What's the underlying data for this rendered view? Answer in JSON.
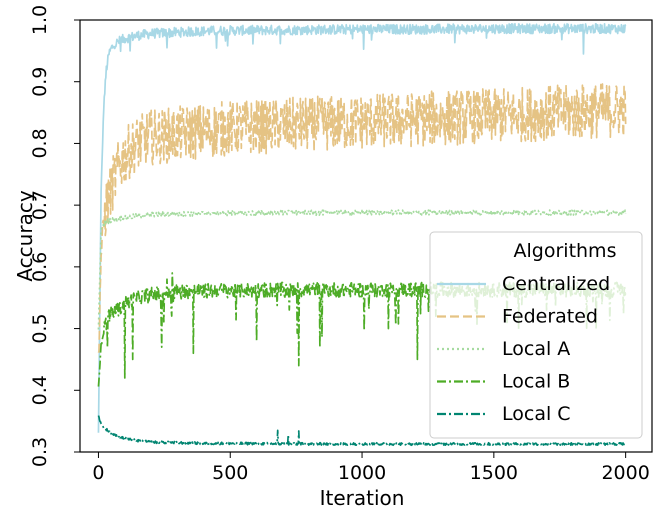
{
  "chart_data": {
    "type": "line",
    "title": "",
    "xlabel": "Iteration",
    "ylabel": "Accuracy",
    "xlim": [
      -70,
      2100
    ],
    "ylim": [
      0.3,
      1.0
    ],
    "xticks": [
      0,
      500,
      1000,
      1500,
      2000
    ],
    "yticks": [
      0.3,
      0.4,
      0.5,
      0.6,
      0.7,
      0.8,
      0.9,
      1.0
    ],
    "xtick_labels": [
      "0",
      "500",
      "1000",
      "1500",
      "2000"
    ],
    "ytick_labels": [
      "0.3",
      "0.4",
      "0.5",
      "0.6",
      "0.7",
      "0.8",
      "0.9",
      "1.0"
    ],
    "legend": {
      "title": "Algorithms",
      "position": "center-right"
    },
    "series": [
      {
        "name": "Centralized",
        "color": "#a8d8e6",
        "style": "solid",
        "x": [
          0,
          10,
          20,
          30,
          40,
          50,
          75,
          100,
          150,
          200,
          300,
          400,
          500,
          750,
          1000,
          1250,
          1500,
          1750,
          2000
        ],
        "values": [
          0.33,
          0.72,
          0.86,
          0.92,
          0.945,
          0.955,
          0.965,
          0.97,
          0.975,
          0.978,
          0.98,
          0.982,
          0.983,
          0.984,
          0.985,
          0.985,
          0.986,
          0.986,
          0.986
        ],
        "noise": 0.008,
        "spikes": [
          [
            1840,
            0.945
          ],
          [
            120,
            0.95
          ],
          [
            260,
            0.955
          ]
        ]
      },
      {
        "name": "Federated",
        "color": "#e5c384",
        "style": "dashed",
        "x": [
          0,
          10,
          20,
          30,
          50,
          75,
          100,
          150,
          200,
          300,
          400,
          500,
          750,
          1000,
          1250,
          1500,
          1750,
          2000
        ],
        "values": [
          0.45,
          0.62,
          0.67,
          0.7,
          0.73,
          0.76,
          0.78,
          0.8,
          0.81,
          0.815,
          0.82,
          0.825,
          0.83,
          0.835,
          0.84,
          0.845,
          0.85,
          0.855
        ],
        "noise": 0.045
      },
      {
        "name": "Local A",
        "color": "#a6dba0",
        "style": "dotted",
        "x": [
          0,
          10,
          20,
          40,
          100,
          200,
          500,
          1000,
          1500,
          2000
        ],
        "values": [
          0.5,
          0.66,
          0.67,
          0.675,
          0.68,
          0.685,
          0.687,
          0.688,
          0.688,
          0.688
        ],
        "noise": 0.004
      },
      {
        "name": "Local B",
        "color": "#4dac26",
        "style": "dashdot",
        "x": [
          0,
          10,
          20,
          40,
          70,
          100,
          150,
          200,
          300,
          500,
          750,
          1000,
          1250,
          1500,
          1750,
          2000
        ],
        "values": [
          0.41,
          0.47,
          0.5,
          0.52,
          0.53,
          0.54,
          0.55,
          0.555,
          0.56,
          0.562,
          0.563,
          0.563,
          0.563,
          0.563,
          0.563,
          0.563
        ],
        "noise": 0.012,
        "spikes": [
          [
            100,
            0.42
          ],
          [
            130,
            0.45
          ],
          [
            240,
            0.47
          ],
          [
            360,
            0.46
          ],
          [
            600,
            0.48
          ],
          [
            760,
            0.44
          ],
          [
            840,
            0.47
          ],
          [
            1100,
            0.5
          ],
          [
            1210,
            0.45
          ],
          [
            1280,
            0.52
          ],
          [
            1550,
            0.51
          ],
          [
            1700,
            0.53
          ],
          [
            280,
            0.59
          ],
          [
            260,
            0.58
          ]
        ]
      },
      {
        "name": "Local C",
        "color": "#018571",
        "style": "dashdot",
        "x": [
          0,
          5,
          20,
          50,
          100,
          150,
          200,
          300,
          400,
          500,
          750,
          1000,
          1500,
          2000
        ],
        "values": [
          0.36,
          0.35,
          0.34,
          0.33,
          0.322,
          0.318,
          0.316,
          0.315,
          0.314,
          0.314,
          0.313,
          0.313,
          0.313,
          0.313
        ],
        "noise": 0.002,
        "spikes": [
          [
            680,
            0.335
          ],
          [
            760,
            0.334
          ],
          [
            720,
            0.328
          ]
        ]
      }
    ]
  }
}
